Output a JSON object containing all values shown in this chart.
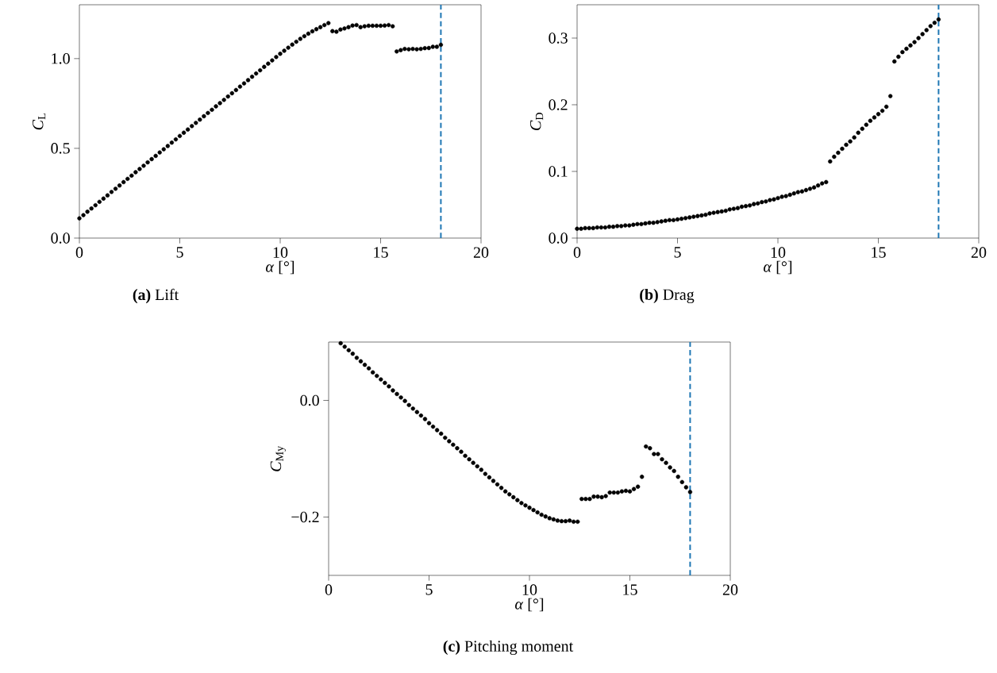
{
  "chart_data": [
    {
      "type": "scatter",
      "xlabel": "*α* [°]",
      "ylabel": "*C*$_{L}$",
      "annotations": [
        "**(a)** Lift"
      ],
      "marker": "circle",
      "x": [
        0,
        0.2,
        0.4,
        0.6,
        0.8,
        1,
        1.2,
        1.4,
        1.6,
        1.8,
        2,
        2.2,
        2.4,
        2.6,
        2.8,
        3,
        3.2,
        3.4,
        3.6,
        3.8,
        4,
        4.2,
        4.4,
        4.6,
        4.8,
        5,
        5.2,
        5.4,
        5.6,
        5.8,
        6,
        6.2,
        6.4,
        6.6,
        6.8,
        7,
        7.2,
        7.4,
        7.6,
        7.8,
        8,
        8.2,
        8.4,
        8.6,
        8.8,
        9,
        9.2,
        9.4,
        9.6,
        9.8,
        10,
        10.2,
        10.4,
        10.6,
        10.8,
        11,
        11.2,
        11.4,
        11.6,
        11.8,
        12,
        12.2,
        12.4,
        12.6,
        12.8,
        13,
        13.2,
        13.4,
        13.6,
        13.8,
        14,
        14.2,
        14.4,
        14.6,
        14.8,
        15,
        15.2,
        15.4,
        15.6,
        15.8,
        16,
        16.2,
        16.4,
        16.6,
        16.8,
        17,
        17.2,
        17.4,
        17.6,
        17.8,
        18
      ],
      "series": [
        {
          "color": "#000000",
          "values": [
            0.11,
            0.128,
            0.147,
            0.165,
            0.183,
            0.202,
            0.22,
            0.238,
            0.257,
            0.275,
            0.293,
            0.312,
            0.33,
            0.348,
            0.367,
            0.385,
            0.403,
            0.422,
            0.44,
            0.458,
            0.477,
            0.495,
            0.513,
            0.532,
            0.55,
            0.569,
            0.587,
            0.605,
            0.624,
            0.642,
            0.66,
            0.679,
            0.697,
            0.715,
            0.734,
            0.752,
            0.77,
            0.789,
            0.807,
            0.825,
            0.844,
            0.862,
            0.88,
            0.899,
            0.917,
            0.935,
            0.954,
            0.972,
            0.99,
            1.009,
            1.027,
            1.044,
            1.061,
            1.078,
            1.094,
            1.11,
            1.125,
            1.139,
            1.152,
            1.164,
            1.175,
            1.187,
            1.198,
            1.153,
            1.15,
            1.162,
            1.168,
            1.175,
            1.184,
            1.187,
            1.175,
            1.18,
            1.183,
            1.183,
            1.183,
            1.183,
            1.184,
            1.187,
            1.18,
            1.04,
            1.047,
            1.054,
            1.052,
            1.054,
            1.052,
            1.054,
            1.058,
            1.059,
            1.066,
            1.066,
            1.077
          ]
        }
      ],
      "xlim": [
        0,
        20
      ],
      "ylim": [
        0,
        1.3
      ],
      "xticks": [
        0,
        5,
        10,
        15,
        20
      ],
      "yticks": [
        {
          "value": 0,
          "label": "0.0"
        },
        {
          "value": 0.5,
          "label": "0.5"
        },
        {
          "value": 1,
          "label": "1.0"
        }
      ],
      "ref_lines": [
        {
          "axis": "x",
          "value": 18,
          "color": "#1f77b4",
          "line_style": "dashed"
        }
      ]
    },
    {
      "type": "scatter",
      "xlabel": "*α* [°]",
      "ylabel": "*C*$_{D}$",
      "annotations": [
        "**(b)** Drag"
      ],
      "marker": "circle",
      "x": [
        0,
        0.2,
        0.4,
        0.6,
        0.8,
        1,
        1.2,
        1.4,
        1.6,
        1.8,
        2,
        2.2,
        2.4,
        2.6,
        2.8,
        3,
        3.2,
        3.4,
        3.6,
        3.8,
        4,
        4.2,
        4.4,
        4.6,
        4.8,
        5,
        5.2,
        5.4,
        5.6,
        5.8,
        6,
        6.2,
        6.4,
        6.6,
        6.8,
        7,
        7.2,
        7.4,
        7.6,
        7.8,
        8,
        8.2,
        8.4,
        8.6,
        8.8,
        9,
        9.2,
        9.4,
        9.6,
        9.8,
        10,
        10.2,
        10.4,
        10.6,
        10.8,
        11,
        11.2,
        11.4,
        11.6,
        11.8,
        12,
        12.2,
        12.4,
        12.6,
        12.8,
        13,
        13.2,
        13.4,
        13.6,
        13.8,
        14,
        14.2,
        14.4,
        14.6,
        14.8,
        15,
        15.2,
        15.4,
        15.6,
        15.8,
        16,
        16.2,
        16.4,
        16.6,
        16.8,
        17,
        17.2,
        17.4,
        17.6,
        17.8,
        18
      ],
      "series": [
        {
          "color": "#000000",
          "values": [
            0.014,
            0.014,
            0.015,
            0.015,
            0.015,
            0.016,
            0.016,
            0.016,
            0.017,
            0.017,
            0.018,
            0.018,
            0.019,
            0.019,
            0.02,
            0.021,
            0.021,
            0.022,
            0.023,
            0.023,
            0.024,
            0.025,
            0.026,
            0.027,
            0.027,
            0.028,
            0.029,
            0.03,
            0.031,
            0.032,
            0.033,
            0.034,
            0.035,
            0.037,
            0.038,
            0.039,
            0.04,
            0.041,
            0.043,
            0.044,
            0.045,
            0.047,
            0.048,
            0.049,
            0.051,
            0.052,
            0.054,
            0.055,
            0.057,
            0.058,
            0.06,
            0.062,
            0.063,
            0.065,
            0.067,
            0.069,
            0.07,
            0.072,
            0.074,
            0.076,
            0.079,
            0.082,
            0.084,
            0.115,
            0.122,
            0.128,
            0.134,
            0.14,
            0.145,
            0.151,
            0.158,
            0.164,
            0.17,
            0.176,
            0.181,
            0.186,
            0.191,
            0.197,
            0.213,
            0.265,
            0.272,
            0.279,
            0.284,
            0.289,
            0.294,
            0.3,
            0.306,
            0.312,
            0.318,
            0.323,
            0.328
          ]
        }
      ],
      "xlim": [
        0,
        20
      ],
      "ylim": [
        0,
        0.35
      ],
      "xticks": [
        0,
        5,
        10,
        15,
        20
      ],
      "yticks": [
        {
          "value": 0,
          "label": "0.0"
        },
        {
          "value": 0.1,
          "label": "0.1"
        },
        {
          "value": 0.2,
          "label": "0.2"
        },
        {
          "value": 0.3,
          "label": "0.3"
        }
      ],
      "ref_lines": [
        {
          "axis": "x",
          "value": 18,
          "color": "#1f77b4",
          "line_style": "dashed"
        }
      ]
    },
    {
      "type": "scatter",
      "xlabel": "*α* [°]",
      "ylabel": "*C*$_{My}$",
      "annotations": [
        "**(c)** Pitching moment"
      ],
      "marker": "circle",
      "x": [
        0.6,
        0.8,
        1,
        1.2,
        1.4,
        1.6,
        1.8,
        2,
        2.2,
        2.4,
        2.6,
        2.8,
        3,
        3.2,
        3.4,
        3.6,
        3.8,
        4,
        4.2,
        4.4,
        4.6,
        4.8,
        5,
        5.2,
        5.4,
        5.6,
        5.8,
        6,
        6.2,
        6.4,
        6.6,
        6.8,
        7,
        7.2,
        7.4,
        7.6,
        7.8,
        8,
        8.2,
        8.4,
        8.6,
        8.8,
        9,
        9.2,
        9.4,
        9.6,
        9.8,
        10,
        10.2,
        10.4,
        10.6,
        10.8,
        11,
        11.2,
        11.4,
        11.6,
        11.8,
        12,
        12.2,
        12.4,
        12.6,
        12.8,
        13,
        13.2,
        13.4,
        13.6,
        13.8,
        14,
        14.2,
        14.4,
        14.6,
        14.8,
        15,
        15.2,
        15.4,
        15.6,
        15.8,
        16,
        16.2,
        16.4,
        16.6,
        16.8,
        17,
        17.2,
        17.4,
        17.6,
        17.8,
        18
      ],
      "series": [
        {
          "color": "#000000",
          "values": [
            0.098,
            0.092,
            0.086,
            0.08,
            0.073,
            0.067,
            0.061,
            0.055,
            0.048,
            0.042,
            0.036,
            0.03,
            0.024,
            0.017,
            0.011,
            0.005,
            -0.001,
            -0.008,
            -0.014,
            -0.02,
            -0.026,
            -0.032,
            -0.039,
            -0.045,
            -0.051,
            -0.057,
            -0.064,
            -0.07,
            -0.076,
            -0.082,
            -0.088,
            -0.095,
            -0.101,
            -0.107,
            -0.113,
            -0.119,
            -0.126,
            -0.132,
            -0.138,
            -0.144,
            -0.15,
            -0.156,
            -0.161,
            -0.166,
            -0.171,
            -0.176,
            -0.18,
            -0.184,
            -0.188,
            -0.192,
            -0.196,
            -0.199,
            -0.202,
            -0.204,
            -0.206,
            -0.207,
            -0.207,
            -0.206,
            -0.208,
            -0.208,
            -0.169,
            -0.169,
            -0.169,
            -0.165,
            -0.165,
            -0.166,
            -0.164,
            -0.158,
            -0.158,
            -0.158,
            -0.156,
            -0.155,
            -0.156,
            -0.152,
            -0.148,
            -0.131,
            -0.079,
            -0.082,
            -0.092,
            -0.092,
            -0.101,
            -0.107,
            -0.115,
            -0.121,
            -0.131,
            -0.14,
            -0.149,
            -0.157
          ]
        }
      ],
      "xlim": [
        0,
        20
      ],
      "ylim": [
        -0.3,
        0.1
      ],
      "xticks": [
        0,
        5,
        10,
        15,
        20
      ],
      "yticks": [
        {
          "value": -0.2,
          "label": "−0.2"
        },
        {
          "value": 0,
          "label": "0.0"
        }
      ],
      "ref_lines": [
        {
          "axis": "x",
          "value": 18,
          "color": "#1f77b4",
          "line_style": "dashed"
        }
      ]
    }
  ]
}
